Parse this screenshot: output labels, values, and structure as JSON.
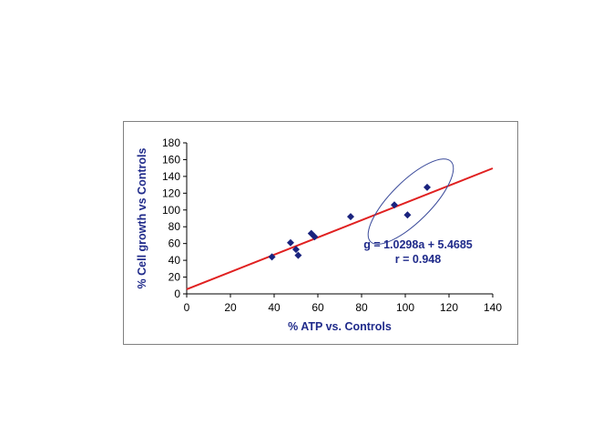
{
  "chart_data": {
    "type": "scatter",
    "xlabel": "% ATP vs. Controls",
    "ylabel": "% Cell growth vs Controls",
    "xlim": [
      0,
      140
    ],
    "ylim": [
      0,
      180
    ],
    "x_ticks": [
      0,
      20,
      40,
      60,
      80,
      100,
      120,
      140
    ],
    "y_ticks": [
      0,
      20,
      40,
      60,
      80,
      100,
      120,
      140,
      160,
      180
    ],
    "x_tick_labels": [
      "0",
      "20",
      "40",
      "60",
      "80",
      "100",
      "120",
      "140"
    ],
    "y_tick_labels": [
      "0",
      "20",
      "40",
      "60",
      "80",
      "100",
      "120",
      "140",
      "160",
      "180"
    ],
    "grid": false,
    "legend": "none",
    "series": [
      {
        "marker": "diamond",
        "color": "#1a237e",
        "points": [
          {
            "x": 39,
            "y": 44
          },
          {
            "x": 47.5,
            "y": 61
          },
          {
            "x": 50,
            "y": 53
          },
          {
            "x": 51,
            "y": 46
          },
          {
            "x": 57,
            "y": 72
          },
          {
            "x": 58.5,
            "y": 68
          },
          {
            "x": 75,
            "y": 92
          },
          {
            "x": 95,
            "y": 106
          },
          {
            "x": 101,
            "y": 94
          },
          {
            "x": 110,
            "y": 127
          }
        ]
      }
    ],
    "trendline": {
      "color": "#e02020",
      "slope": 1.0298,
      "intercept": 5.4685,
      "x_range": [
        0,
        140
      ]
    },
    "annotations": {
      "equation": "g = 1.0298a + 5.4685",
      "r_value": "r = 0.948"
    },
    "highlight_ellipse": {
      "color": "#3a4a9a",
      "cx": 102.5,
      "cy": 110,
      "rx_data": 16,
      "ry_data": 25
    }
  }
}
